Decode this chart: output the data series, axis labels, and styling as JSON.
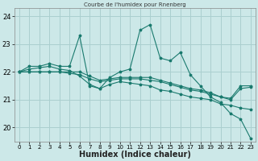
{
  "title": "Courbe de l'humidex pour Rnenberg",
  "xlabel": "Humidex (Indice chaleur)",
  "bg_color": "#cce8e8",
  "grid_color": "#aacfcf",
  "line_color": "#1a7a6e",
  "x": [
    0,
    1,
    2,
    3,
    4,
    5,
    6,
    7,
    8,
    9,
    10,
    11,
    12,
    13,
    14,
    15,
    16,
    17,
    18,
    19,
    20,
    21,
    22,
    23
  ],
  "series": [
    [
      22.0,
      22.2,
      22.2,
      22.3,
      22.2,
      22.2,
      23.3,
      21.5,
      21.4,
      21.8,
      22.0,
      22.1,
      23.5,
      23.7,
      22.5,
      22.4,
      22.7,
      21.9,
      21.5,
      21.1,
      20.9,
      20.5,
      20.3,
      19.6
    ],
    [
      22.0,
      22.0,
      22.0,
      22.0,
      22.0,
      22.0,
      22.0,
      21.85,
      21.7,
      21.75,
      21.8,
      21.8,
      21.8,
      21.8,
      21.7,
      21.6,
      21.5,
      21.4,
      21.35,
      21.25,
      21.1,
      21.05,
      21.5,
      21.5
    ],
    [
      22.0,
      22.0,
      22.0,
      22.0,
      22.0,
      21.95,
      21.9,
      21.75,
      21.65,
      21.7,
      21.75,
      21.75,
      21.75,
      21.7,
      21.65,
      21.55,
      21.45,
      21.35,
      21.3,
      21.2,
      21.1,
      21.0,
      21.4,
      21.45
    ],
    [
      22.0,
      22.1,
      22.15,
      22.2,
      22.1,
      22.05,
      21.85,
      21.55,
      21.4,
      21.55,
      21.65,
      21.6,
      21.55,
      21.5,
      21.35,
      21.3,
      21.2,
      21.1,
      21.05,
      21.0,
      20.85,
      20.8,
      20.7,
      20.65
    ]
  ],
  "ylim": [
    19.5,
    24.3
  ],
  "yticks": [
    20,
    21,
    22,
    23,
    24
  ],
  "xlim": [
    -0.5,
    23.5
  ],
  "xticks": [
    0,
    1,
    2,
    3,
    4,
    5,
    6,
    7,
    8,
    9,
    10,
    11,
    12,
    13,
    14,
    15,
    16,
    17,
    18,
    19,
    20,
    21,
    22,
    23
  ],
  "tick_fontsize": 6,
  "xlabel_fontsize": 7
}
